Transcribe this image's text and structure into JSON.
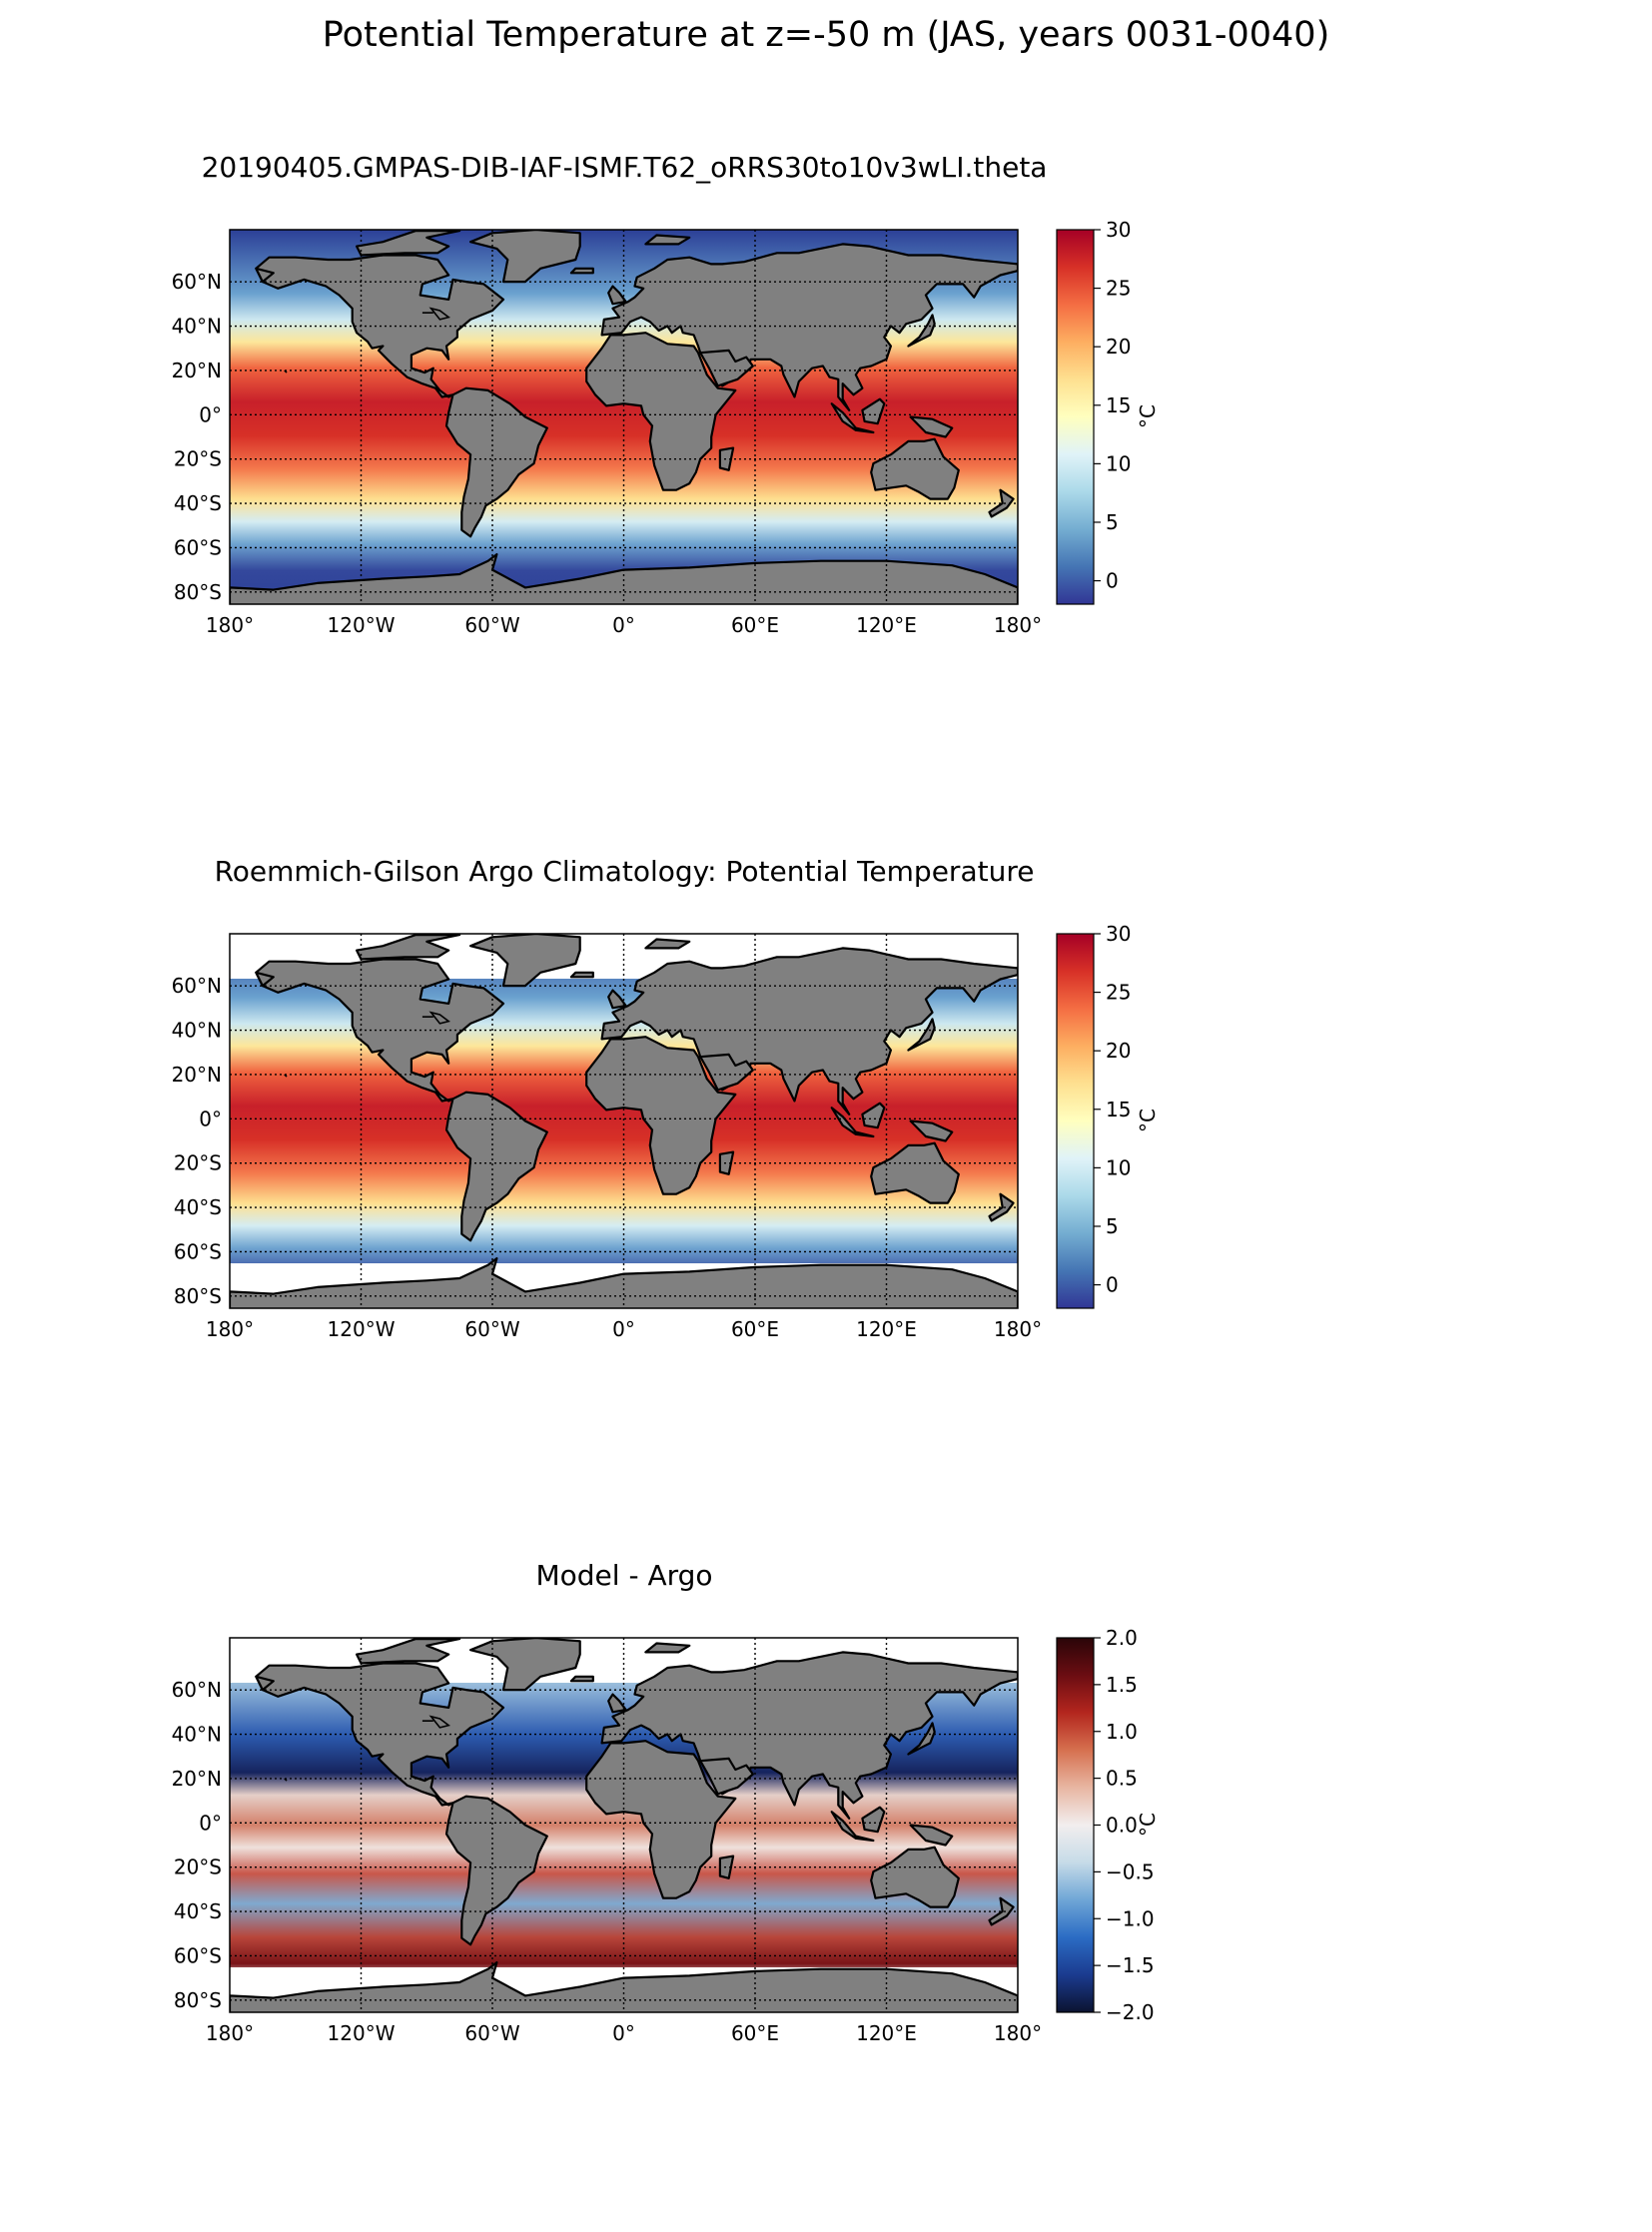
{
  "suptitle": "Potential Temperature at z=-50 m (JAS, years 0031-0040)",
  "lon_ticks": [
    "180°",
    "120°W",
    "60°W",
    "0°",
    "60°E",
    "120°E",
    "180°"
  ],
  "lat_ticks": [
    "60°N",
    "40°N",
    "20°N",
    "0°",
    "20°S",
    "40°S",
    "60°S",
    "80°S"
  ],
  "panels": [
    {
      "id": "model",
      "title": "20190405.GMPAS-DIB-IAF-ISMF.T62_oRRS30to10v3wLI.theta",
      "colorbar": {
        "ticks": [
          "30",
          "25",
          "20",
          "15",
          "10",
          "5",
          "0"
        ],
        "label": "°C",
        "range": [
          -2,
          30
        ],
        "colors": [
          "#313695",
          "#4575b4",
          "#74add1",
          "#abd9e9",
          "#e0f3f8",
          "#ffffbf",
          "#fee090",
          "#fdae61",
          "#f46d43",
          "#d73027",
          "#a50026"
        ]
      }
    },
    {
      "id": "argo",
      "title": "Roemmich-Gilson Argo Climatology: Potential Temperature",
      "colorbar": {
        "ticks": [
          "30",
          "25",
          "20",
          "15",
          "10",
          "5",
          "0"
        ],
        "label": "°C",
        "range": [
          -2,
          30
        ],
        "colors": [
          "#313695",
          "#4575b4",
          "#74add1",
          "#abd9e9",
          "#e0f3f8",
          "#ffffbf",
          "#fee090",
          "#fdae61",
          "#f46d43",
          "#d73027",
          "#a50026"
        ]
      }
    },
    {
      "id": "diff",
      "title": "Model - Argo",
      "colorbar": {
        "ticks": [
          "2.0",
          "1.5",
          "1.0",
          "0.5",
          "0.0",
          "−0.5",
          "−1.0",
          "−1.5",
          "−2.0"
        ],
        "label": "°C",
        "range": [
          -2,
          2
        ],
        "colors": [
          "#0b1330",
          "#1b3b8f",
          "#2b6cc4",
          "#6fa6d6",
          "#c6dbe8",
          "#f2eeee",
          "#e8b6a2",
          "#d6704f",
          "#b3261e",
          "#6b0d12",
          "#2a0508"
        ]
      }
    }
  ],
  "colors": {
    "land": "#808080",
    "coast": "#000000",
    "missing": "#ffffff"
  }
}
